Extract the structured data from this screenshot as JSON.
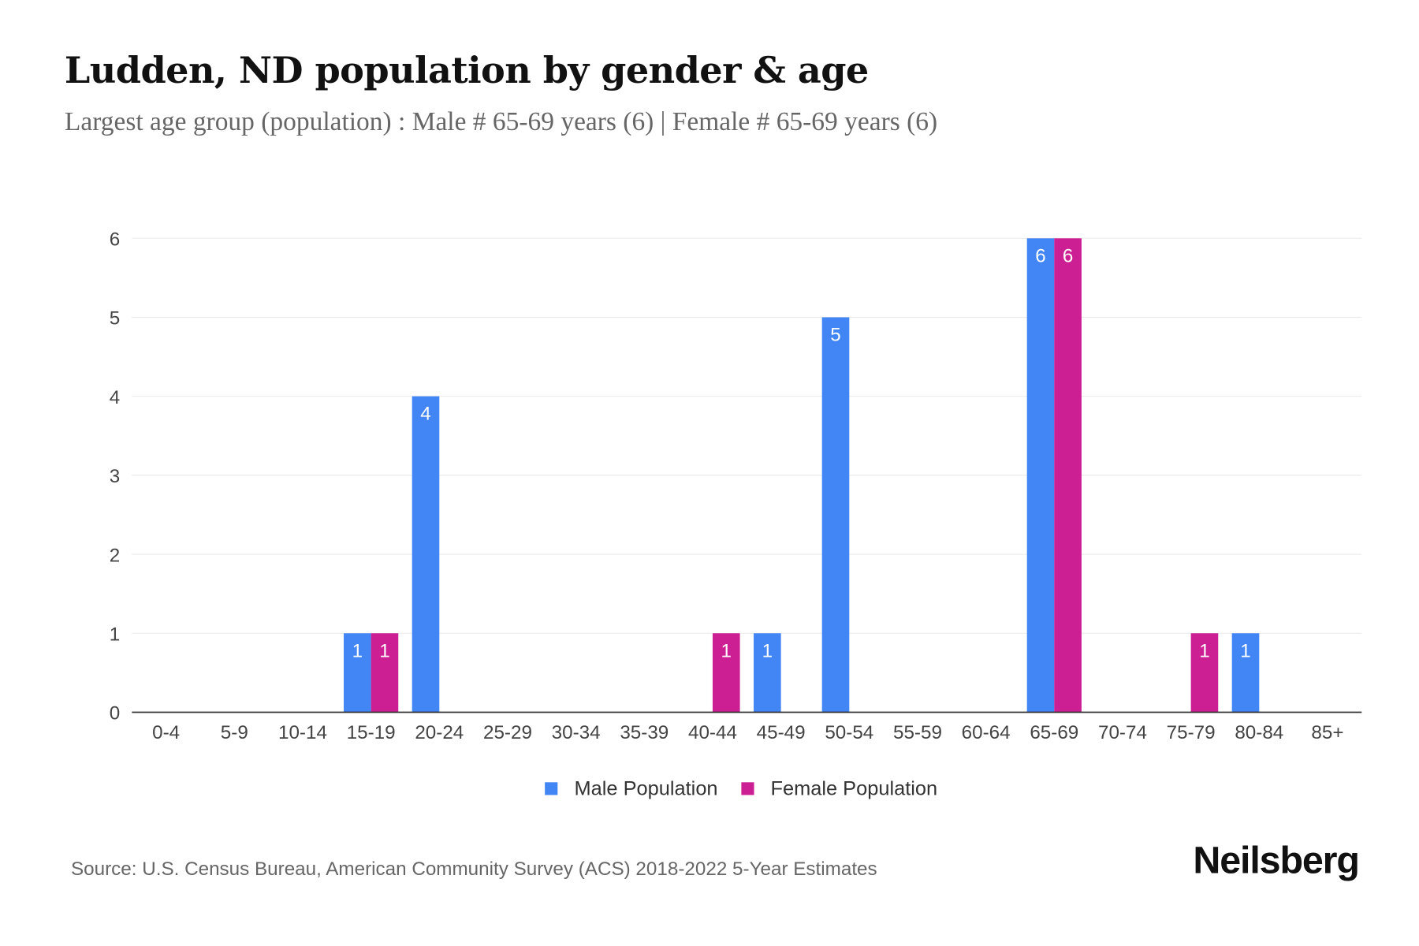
{
  "chart_data": {
    "type": "bar",
    "title": "Ludden, ND population by gender & age",
    "subtitle": "Largest age group (population) : Male # 65-69 years (6) | Female # 65-69 years (6)",
    "categories": [
      "0-4",
      "5-9",
      "10-14",
      "15-19",
      "20-24",
      "25-29",
      "30-34",
      "35-39",
      "40-44",
      "45-49",
      "50-54",
      "55-59",
      "60-64",
      "65-69",
      "70-74",
      "75-79",
      "80-84",
      "85+"
    ],
    "series": [
      {
        "name": "Male Population",
        "color": "#4285f4",
        "values": [
          0,
          0,
          0,
          1,
          4,
          0,
          0,
          0,
          0,
          1,
          5,
          0,
          0,
          6,
          0,
          0,
          1,
          0
        ]
      },
      {
        "name": "Female Population",
        "color": "#cc1f93",
        "values": [
          0,
          0,
          0,
          1,
          0,
          0,
          0,
          0,
          1,
          0,
          0,
          0,
          0,
          6,
          0,
          1,
          0,
          0
        ]
      }
    ],
    "yticks": [
      0,
      1,
      2,
      3,
      4,
      5,
      6
    ],
    "ylim": [
      0,
      6
    ],
    "grid": true,
    "legend": "bottom-center",
    "xlabel": "",
    "ylabel": ""
  },
  "source": "Source: U.S. Census Bureau, American Community Survey (ACS) 2018-2022 5-Year Estimates",
  "logo": "Neilsberg"
}
